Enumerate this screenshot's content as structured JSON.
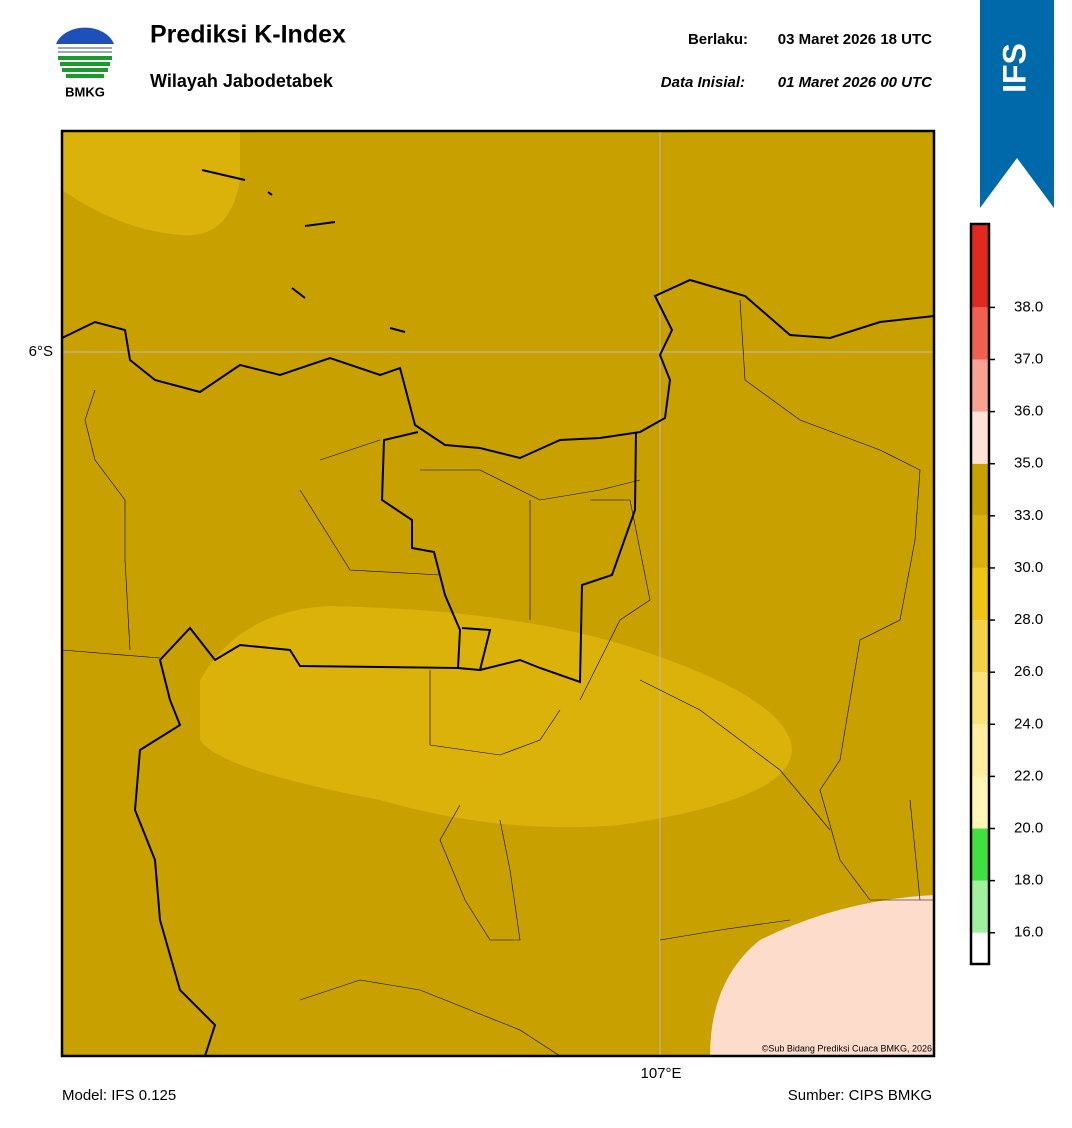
{
  "header": {
    "logo_text": "BMKG",
    "title": "Prediksi K-Index",
    "subtitle": "Wilayah Jabodetabek",
    "valid_label": "Berlaku:",
    "valid_time": "03 Maret 2026 18 UTC",
    "init_label": "Data Inisial:",
    "init_time": "01 Maret 2026 00 UTC",
    "badge": "IFS"
  },
  "map": {
    "lat_label": "6°S",
    "lon_label": "107°E",
    "credit": "©Sub Bidang Prediksi Cuaca BMKG, 2026"
  },
  "colorbar": {
    "ticks": [
      {
        "value": 16,
        "label": "16.0"
      },
      {
        "value": 18,
        "label": "18.0"
      },
      {
        "value": 20,
        "label": "20.0"
      },
      {
        "value": 22,
        "label": "22.0"
      },
      {
        "value": 24,
        "label": "24.0"
      },
      {
        "value": 26,
        "label": "26.0"
      },
      {
        "value": 28,
        "label": "28.0"
      },
      {
        "value": 30,
        "label": "30.0"
      },
      {
        "value": 33,
        "label": "33.0"
      },
      {
        "value": 35,
        "label": "35.0"
      },
      {
        "value": 36,
        "label": "36.0"
      },
      {
        "value": 37,
        "label": "37.0"
      },
      {
        "value": 38,
        "label": "38.0"
      }
    ],
    "colors": [
      "#ffffff",
      "#a0f0a0",
      "#40e040",
      "#fff5b5",
      "#ffeea0",
      "#fbe27a",
      "#f3d248",
      "#eec515",
      "#dbb00a",
      "#c8a000",
      "#fde2d6",
      "#f8a292",
      "#ef6050",
      "#e02a20"
    ]
  },
  "footer": {
    "model": "Model: IFS 0.125",
    "source": "Sumber: CIPS BMKG"
  }
}
